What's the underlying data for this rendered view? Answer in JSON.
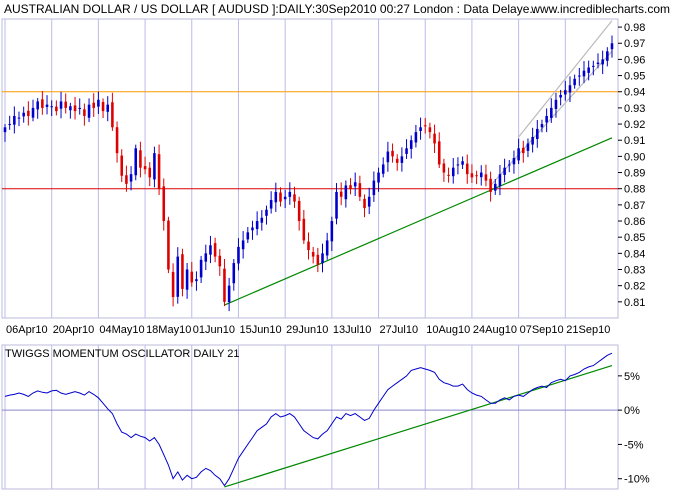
{
  "header": {
    "title": "AUSTRALIAN DOLLAR / US DOLLAR [ AUDUSD ]:DAILY:30Sep2010 00:27 London : Data Delaye..",
    "site": "www.incrediblecharts.com"
  },
  "colors": {
    "up_candle": "#0000cc",
    "down_candle": "#dd0000",
    "resistance_line": "#ff9900",
    "support_line": "#dd0000",
    "trend_line": "#008800",
    "channel_line": "#bbbbbb",
    "oscillator_line": "#0000cc",
    "zero_line": "#8888cc",
    "grid": "#bbbbee"
  },
  "chart_data": [
    {
      "type": "candlestick",
      "title": "AUSTRALIAN DOLLAR / US DOLLAR [ AUDUSD ]:DAILY:30Sep2010",
      "x_ticks": [
        "06Apr10",
        "20Apr10",
        "04May10",
        "18May10",
        "01Jun10",
        "15Jun10",
        "29Jun10",
        "13Jul10",
        "27Jul10",
        "10Aug10",
        "24Aug10",
        "07Sep10",
        "21Sep10"
      ],
      "x_tick_index": [
        0,
        10,
        20,
        30,
        40,
        50,
        60,
        70,
        80,
        90,
        100,
        110,
        120
      ],
      "y_ticks": [
        "0.81",
        "0.82",
        "0.83",
        "0.84",
        "0.85",
        "0.86",
        "0.87",
        "0.88",
        "0.89",
        "0.90",
        "0.91",
        "0.92",
        "0.93",
        "0.94",
        "0.95",
        "0.96",
        "0.97",
        "0.98"
      ],
      "ylim": [
        0.8,
        0.985
      ],
      "grid": true,
      "horizontal_lines": [
        {
          "name": "resistance",
          "y": 0.94,
          "color": "#ff9900"
        },
        {
          "name": "support",
          "y": 0.88,
          "color": "#dd0000"
        }
      ],
      "trend_lines": [
        {
          "name": "rising-support",
          "x0": 47,
          "y0": 0.808,
          "x1": 130,
          "y1": 0.9115,
          "color": "#008800"
        },
        {
          "name": "channel-upper",
          "x0": 110,
          "y0": 0.912,
          "x1": 130,
          "y1": 0.984,
          "color": "#bbbbbb"
        },
        {
          "name": "channel-lower",
          "x0": 104,
          "y0": 0.882,
          "x1": 130,
          "y1": 0.965,
          "color": "#bbbbbb"
        }
      ],
      "closes": [
        0.918,
        0.92,
        0.925,
        0.924,
        0.927,
        0.925,
        0.93,
        0.934,
        0.93,
        0.932,
        0.931,
        0.928,
        0.934,
        0.93,
        0.931,
        0.928,
        0.93,
        0.925,
        0.932,
        0.93,
        0.935,
        0.928,
        0.932,
        0.918,
        0.902,
        0.888,
        0.883,
        0.889,
        0.905,
        0.893,
        0.892,
        0.887,
        0.902,
        0.88,
        0.86,
        0.83,
        0.813,
        0.838,
        0.818,
        0.83,
        0.822,
        0.824,
        0.836,
        0.84,
        0.845,
        0.838,
        0.832,
        0.81,
        0.82,
        0.834,
        0.844,
        0.848,
        0.853,
        0.856,
        0.86,
        0.862,
        0.867,
        0.873,
        0.878,
        0.872,
        0.875,
        0.878,
        0.872,
        0.86,
        0.848,
        0.842,
        0.838,
        0.833,
        0.84,
        0.848,
        0.86,
        0.878,
        0.875,
        0.882,
        0.88,
        0.884,
        0.875,
        0.868,
        0.875,
        0.885,
        0.89,
        0.895,
        0.903,
        0.9,
        0.896,
        0.9,
        0.905,
        0.91,
        0.915,
        0.918,
        0.919,
        0.915,
        0.908,
        0.895,
        0.89,
        0.888,
        0.893,
        0.895,
        0.897,
        0.889,
        0.887,
        0.888,
        0.89,
        0.885,
        0.878,
        0.883,
        0.889,
        0.893,
        0.895,
        0.899,
        0.905,
        0.902,
        0.908,
        0.912,
        0.917,
        0.92,
        0.925,
        0.93,
        0.935,
        0.938,
        0.941,
        0.944,
        0.948,
        0.95,
        0.953,
        0.955,
        0.956,
        0.958,
        0.96,
        0.965,
        0.97
      ]
    },
    {
      "type": "line",
      "title": "TWIGGS MOMENTUM OSCILLATOR DAILY 21",
      "y_ticks": [
        "5%",
        "0%",
        "-5%",
        "-10%"
      ],
      "y_tick_values": [
        5,
        0,
        -5,
        -10
      ],
      "ylim": [
        -11.5,
        9.5
      ],
      "zero_line": true,
      "trend_lines": [
        {
          "name": "oscillator-trend",
          "x0": 47,
          "y0": -11.2,
          "x1": 130,
          "y1": 6.5,
          "color": "#008800"
        }
      ],
      "values": [
        2.0,
        2.2,
        2.3,
        2.5,
        2.3,
        2.0,
        2.5,
        2.8,
        2.6,
        2.5,
        2.8,
        2.9,
        2.5,
        2.3,
        2.5,
        2.7,
        2.5,
        2.2,
        2.7,
        2.3,
        1.8,
        1.0,
        0.2,
        -0.5,
        -2.0,
        -3.2,
        -3.5,
        -4.0,
        -3.5,
        -3.8,
        -4.0,
        -4.5,
        -4.0,
        -5.0,
        -6.5,
        -8.0,
        -10.0,
        -9.0,
        -10.2,
        -9.5,
        -10.0,
        -9.8,
        -9.0,
        -8.5,
        -8.8,
        -9.5,
        -10.0,
        -11.0,
        -10.0,
        -8.5,
        -7.0,
        -6.0,
        -5.0,
        -4.0,
        -3.0,
        -2.5,
        -2.0,
        -1.0,
        -0.5,
        -1.0,
        -0.8,
        -0.5,
        -1.0,
        -2.0,
        -3.0,
        -3.5,
        -4.0,
        -4.2,
        -3.5,
        -3.0,
        -2.0,
        -1.0,
        -1.3,
        -0.5,
        -0.8,
        -0.5,
        -1.0,
        -1.5,
        -1.2,
        0.0,
        1.0,
        2.0,
        3.0,
        3.5,
        4.0,
        4.5,
        5.0,
        5.8,
        6.0,
        6.2,
        6.0,
        5.8,
        5.5,
        4.5,
        4.0,
        3.8,
        3.5,
        3.5,
        3.8,
        3.0,
        2.5,
        2.2,
        2.0,
        1.5,
        1.0,
        1.0,
        1.5,
        1.8,
        1.5,
        2.0,
        2.2,
        2.0,
        2.5,
        3.0,
        3.3,
        3.5,
        3.3,
        4.0,
        4.3,
        4.5,
        4.3,
        5.0,
        5.2,
        5.5,
        6.0,
        6.3,
        6.5,
        7.0,
        7.5,
        8.0,
        8.3
      ]
    }
  ]
}
